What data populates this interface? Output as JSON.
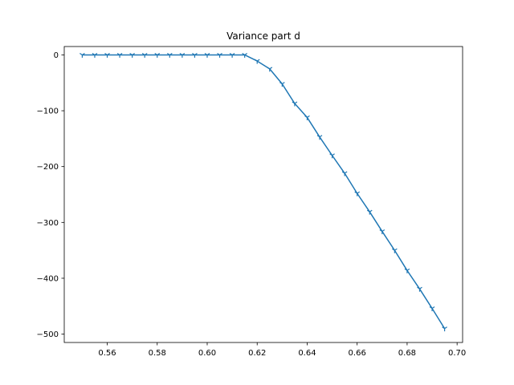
{
  "chart_data": {
    "type": "line",
    "title": "Variance part d",
    "xlabel": "",
    "ylabel": "",
    "xlim": [
      0.5428,
      0.7022
    ],
    "ylim": [
      -515,
      15
    ],
    "xticks": [
      0.56,
      0.58,
      0.6,
      0.62,
      0.64,
      0.66,
      0.68,
      0.7
    ],
    "xtick_labels": [
      "0.56",
      "0.58",
      "0.60",
      "0.62",
      "0.64",
      "0.66",
      "0.68",
      "0.70"
    ],
    "yticks": [
      0,
      -100,
      -200,
      -300,
      -400,
      -500
    ],
    "ytick_labels": [
      "0",
      "−100",
      "−200",
      "−300",
      "−400",
      "−500"
    ],
    "grid": false,
    "series": [
      {
        "color": "#1f77b4",
        "marker": "tri_down",
        "x": [
          0.55,
          0.555,
          0.56,
          0.565,
          0.57,
          0.575,
          0.58,
          0.585,
          0.59,
          0.595,
          0.6,
          0.605,
          0.61,
          0.615,
          0.62,
          0.625,
          0.63,
          0.635,
          0.64,
          0.645,
          0.65,
          0.655,
          0.66,
          0.665,
          0.67,
          0.675,
          0.68,
          0.685,
          0.69,
          0.695
        ],
        "y": [
          0,
          0,
          0,
          0,
          0,
          0,
          0,
          0,
          0,
          0,
          0,
          0,
          0,
          0,
          -11,
          -25,
          -52,
          -87,
          -112,
          -147,
          -180,
          -212,
          -248,
          -281,
          -316,
          -350,
          -386,
          -419,
          -454,
          -490
        ]
      }
    ]
  }
}
